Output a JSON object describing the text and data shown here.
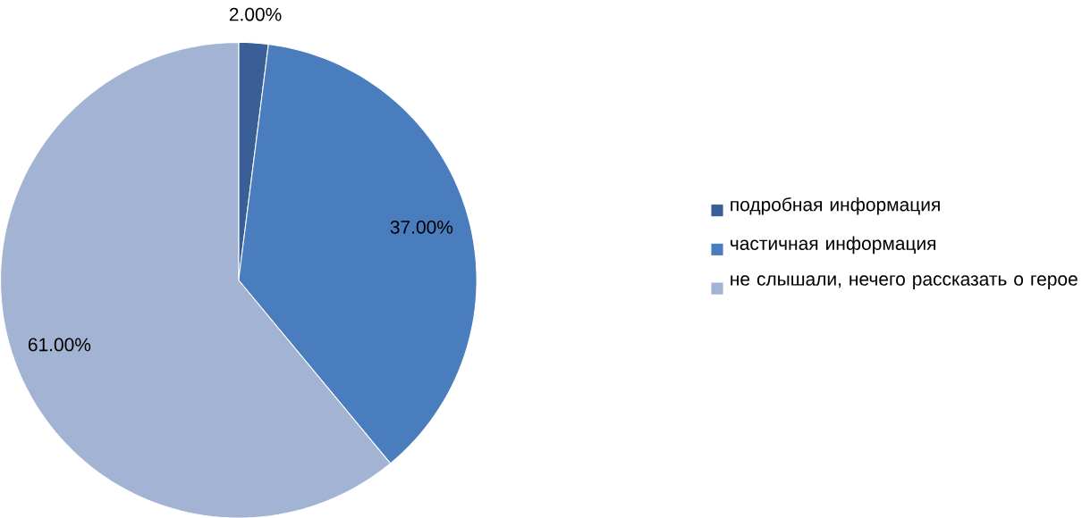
{
  "chart_data": {
    "type": "pie",
    "categories": [
      "подробная информация",
      "частичная информация",
      "не слышали, нечего рассказать о герое"
    ],
    "values": [
      2,
      37,
      61
    ],
    "colors": [
      "#3a5f96",
      "#4a7dbd",
      "#a2b3d3"
    ],
    "value_labels": [
      "2.00%",
      "37.00%",
      "61.00%"
    ],
    "legend": "right"
  }
}
